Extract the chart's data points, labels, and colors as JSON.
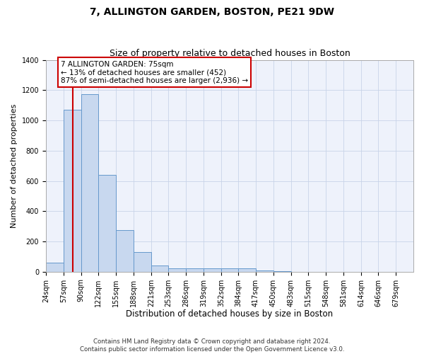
{
  "title": "7, ALLINGTON GARDEN, BOSTON, PE21 9DW",
  "subtitle": "Size of property relative to detached houses in Boston",
  "xlabel": "Distribution of detached houses by size in Boston",
  "ylabel": "Number of detached properties",
  "bin_labels": [
    "24sqm",
    "57sqm",
    "90sqm",
    "122sqm",
    "155sqm",
    "188sqm",
    "221sqm",
    "253sqm",
    "286sqm",
    "319sqm",
    "352sqm",
    "384sqm",
    "417sqm",
    "450sqm",
    "483sqm",
    "515sqm",
    "548sqm",
    "581sqm",
    "614sqm",
    "646sqm",
    "679sqm"
  ],
  "bin_edges": [
    24,
    57,
    90,
    122,
    155,
    188,
    221,
    253,
    286,
    319,
    352,
    384,
    417,
    450,
    483,
    515,
    548,
    581,
    614,
    646,
    679,
    712
  ],
  "counts": [
    60,
    1070,
    1175,
    640,
    275,
    130,
    40,
    20,
    20,
    20,
    20,
    20,
    10,
    5,
    0,
    0,
    0,
    0,
    0,
    0,
    0
  ],
  "bar_color": "#c8d8ef",
  "bar_edge_color": "#6699cc",
  "property_line_x": 75,
  "property_line_color": "#cc0000",
  "annotation_text": "7 ALLINGTON GARDEN: 75sqm\n← 13% of detached houses are smaller (452)\n87% of semi-detached houses are larger (2,936) →",
  "annotation_box_color": "#ffffff",
  "annotation_box_edge": "#cc0000",
  "ylim": [
    0,
    1400
  ],
  "yticks": [
    0,
    200,
    400,
    600,
    800,
    1000,
    1200,
    1400
  ],
  "footer_text": "Contains HM Land Registry data © Crown copyright and database right 2024.\nContains public sector information licensed under the Open Government Licence v3.0.",
  "title_fontsize": 10,
  "subtitle_fontsize": 9,
  "tick_fontsize": 7,
  "ylabel_fontsize": 8,
  "xlabel_fontsize": 8.5,
  "annotation_fontsize": 7.5,
  "background_color": "#ffffff",
  "grid_color": "#c8d4e8",
  "axes_bg_color": "#eef2fb"
}
